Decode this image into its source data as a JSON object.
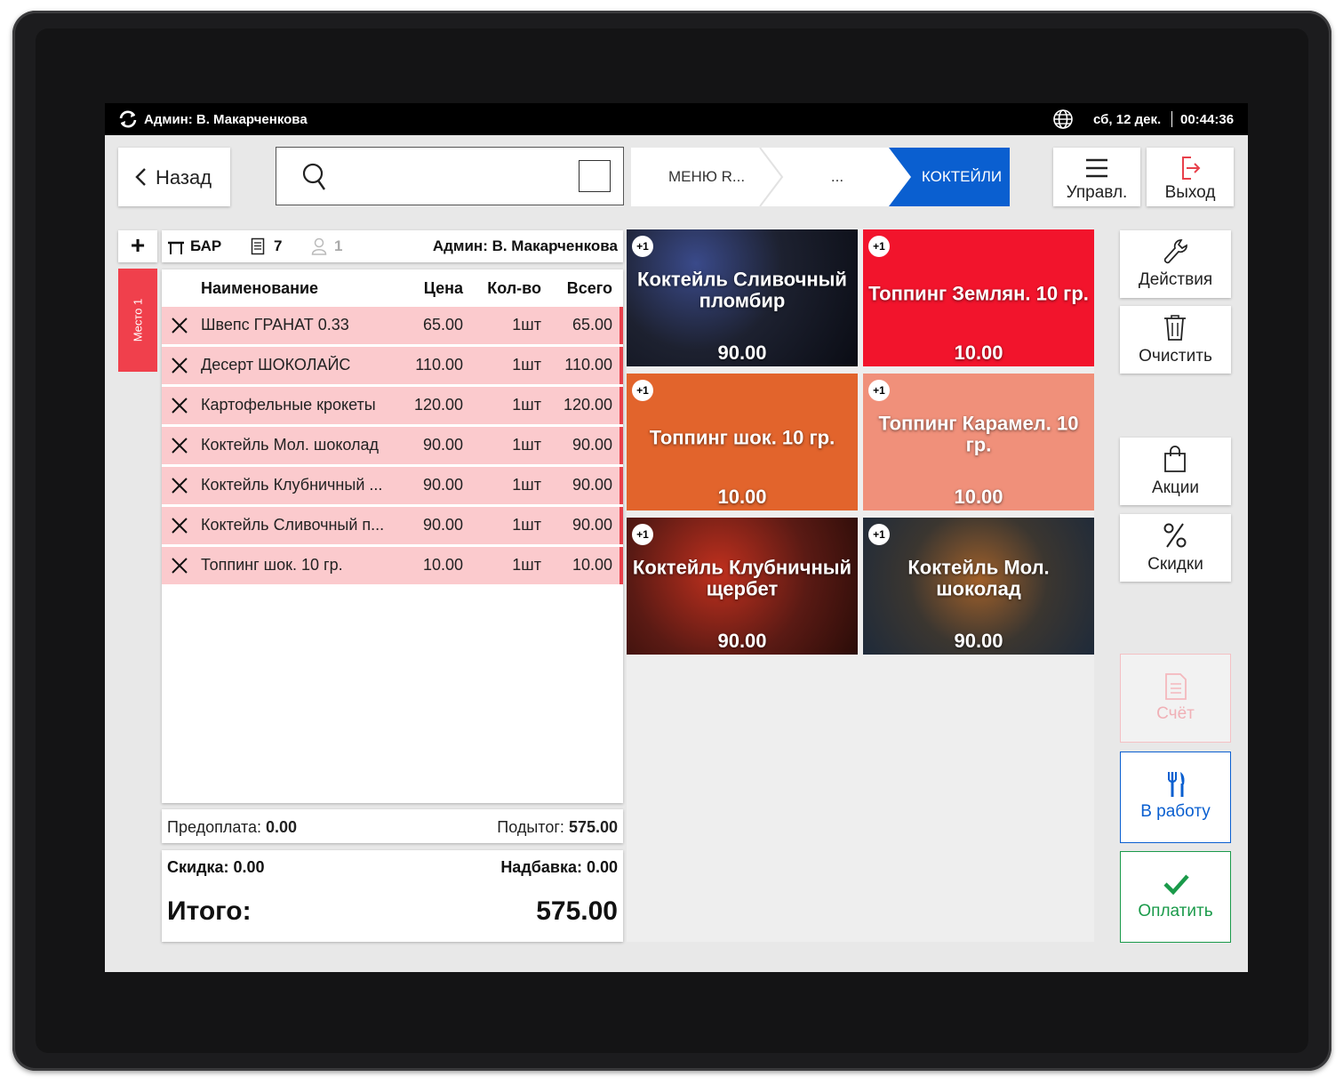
{
  "topbar": {
    "admin": "Админ: В. Макарченкова",
    "date": "сб, 12 дек.",
    "time": "00:44:36"
  },
  "header": {
    "back_label": "Назад",
    "search_placeholder": "",
    "breadcrumbs": [
      "МЕНЮ R...",
      "...",
      "КОКТЕЙЛИ"
    ],
    "manage_label": "Управл.",
    "exit_label": "Выход"
  },
  "order": {
    "add_label": "+",
    "table": "БАР",
    "order_number": "7",
    "guests": "1",
    "waiter": "Админ: В. Макарченкова",
    "seat": "Место 1",
    "columns": {
      "name": "Наименование",
      "price": "Цена",
      "qty": "Кол-во",
      "total": "Всего"
    },
    "items": [
      {
        "name": "Швепс ГРАНАТ 0.33",
        "price": "65.00",
        "qty": "1шт",
        "total": "65.00"
      },
      {
        "name": "Десерт ШОКОЛАЙС",
        "price": "110.00",
        "qty": "1шт",
        "total": "110.00"
      },
      {
        "name": "Картофельные крокеты",
        "price": "120.00",
        "qty": "1шт",
        "total": "120.00"
      },
      {
        "name": "Коктейль Мол. шоколад",
        "price": "90.00",
        "qty": "1шт",
        "total": "90.00"
      },
      {
        "name": "Коктейль Клубничный ...",
        "price": "90.00",
        "qty": "1шт",
        "total": "90.00"
      },
      {
        "name": "Коктейль Сливочный п...",
        "price": "90.00",
        "qty": "1шт",
        "total": "90.00"
      },
      {
        "name": "Топпинг шок. 10 гр.",
        "price": "10.00",
        "qty": "1шт",
        "total": "10.00"
      }
    ],
    "prepay_label": "Предоплата:",
    "prepay_value": "0.00",
    "subtotal_label": "Подытог:",
    "subtotal_value": "575.00",
    "discount_text": "Скидка: 0.00",
    "surcharge_text": "Надбавка: 0.00",
    "total_label": "Итого:",
    "total_value": "575.00"
  },
  "products": [
    {
      "name": "Коктейль Сливочный пломбир",
      "price": "90.00",
      "badge": "+1",
      "bg": "#1d2130"
    },
    {
      "name": "Топпинг Землян. 10 гр.",
      "price": "10.00",
      "badge": "+1",
      "bg": "#f2142c"
    },
    {
      "name": "Топпинг шок. 10 гр.",
      "price": "10.00",
      "badge": "+1",
      "bg": "#e2642c"
    },
    {
      "name": "Топпинг Карамел. 10 гр.",
      "price": "10.00",
      "badge": "+1",
      "bg": "#f0907a"
    },
    {
      "name": "Коктейль Клубничный щербет",
      "price": "90.00",
      "badge": "+1",
      "bg": "#5a1a14"
    },
    {
      "name": "Коктейль Мол. шоколад",
      "price": "90.00",
      "badge": "+1",
      "bg": "#3b3630"
    }
  ],
  "actions": {
    "actions_label": "Действия",
    "clear_label": "Очистить",
    "promos_label": "Акции",
    "discounts_label": "Скидки",
    "bill_label": "Счёт",
    "to_work_label": "В работу",
    "pay_label": "Оплатить"
  },
  "colors": {
    "accent_blue": "#0a5fd0",
    "pay_green": "#1a9a4a",
    "seat_red": "#f0404c",
    "row_pink": "#fbcacd"
  }
}
